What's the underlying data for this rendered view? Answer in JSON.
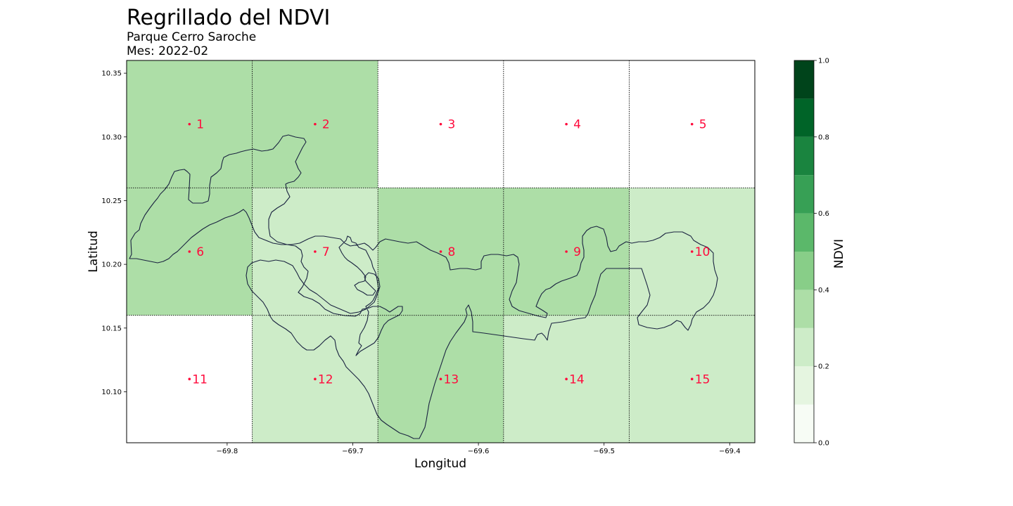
{
  "title": "Regrillado del NDVI",
  "subtitle_park": "Parque Cerro Saroche",
  "subtitle_month": "Mes: 2022-02",
  "colors": {
    "grid_line": "#000000",
    "point_label": "#ff0a3c",
    "outline": "#1a2340",
    "colormap": [
      "#f7fcf5",
      "#e5f5e0",
      "#cdecc8",
      "#addea7",
      "#88ce88",
      "#5bb86a",
      "#37a055",
      "#1a843f",
      "#006428",
      "#00441b"
    ]
  },
  "chart_data": {
    "type": "heatmap",
    "title": "Regrillado del NDVI",
    "subtitle": [
      "Parque Cerro Saroche",
      "Mes: 2022-02"
    ],
    "xlabel": "Longitud",
    "ylabel": "Latitud",
    "xlim": [
      -69.88,
      -69.38
    ],
    "ylim": [
      10.06,
      10.36
    ],
    "xticks": [
      -69.8,
      -69.7,
      -69.6,
      -69.5,
      -69.4
    ],
    "xtick_labels": [
      "−69.8",
      "−69.7",
      "−69.6",
      "−69.5",
      "−69.4"
    ],
    "yticks": [
      10.1,
      10.15,
      10.2,
      10.25,
      10.3,
      10.35
    ],
    "ytick_labels": [
      "10.10",
      "10.15",
      "10.20",
      "10.25",
      "10.30",
      "10.35"
    ],
    "x_edges": [
      -69.88,
      -69.78,
      -69.68,
      -69.58,
      -69.48,
      -69.38
    ],
    "y_edges": [
      10.36,
      10.26,
      10.16,
      10.06
    ],
    "cells": [
      {
        "id": "1",
        "lon": -69.83,
        "lat": 10.31,
        "ndvi": 0.35
      },
      {
        "id": "2",
        "lon": -69.73,
        "lat": 10.31,
        "ndvi": 0.35
      },
      {
        "id": "3",
        "lon": -69.63,
        "lat": 10.31,
        "ndvi": null
      },
      {
        "id": "4",
        "lon": -69.53,
        "lat": 10.31,
        "ndvi": null
      },
      {
        "id": "5",
        "lon": -69.43,
        "lat": 10.31,
        "ndvi": null
      },
      {
        "id": "6",
        "lon": -69.83,
        "lat": 10.21,
        "ndvi": 0.35
      },
      {
        "id": "7",
        "lon": -69.73,
        "lat": 10.21,
        "ndvi": 0.25
      },
      {
        "id": "8",
        "lon": -69.63,
        "lat": 10.21,
        "ndvi": 0.35
      },
      {
        "id": "9",
        "lon": -69.53,
        "lat": 10.21,
        "ndvi": 0.35
      },
      {
        "id": "10",
        "lon": -69.43,
        "lat": 10.21,
        "ndvi": 0.25
      },
      {
        "id": "11",
        "lon": -69.83,
        "lat": 10.11,
        "ndvi": null
      },
      {
        "id": "12",
        "lon": -69.73,
        "lat": 10.11,
        "ndvi": 0.25
      },
      {
        "id": "13",
        "lon": -69.63,
        "lat": 10.11,
        "ndvi": 0.35
      },
      {
        "id": "14",
        "lon": -69.53,
        "lat": 10.11,
        "ndvi": 0.25
      },
      {
        "id": "15",
        "lon": -69.43,
        "lat": 10.11,
        "ndvi": 0.25
      }
    ],
    "colorbar": {
      "label": "NDVI",
      "levels": [
        0.0,
        0.1,
        0.2,
        0.3,
        0.4,
        0.5,
        0.6,
        0.7,
        0.8,
        0.9,
        1.0
      ],
      "ticks": [
        0.0,
        0.2,
        0.4,
        0.6,
        0.8,
        1.0
      ],
      "tick_labels": [
        "0.0",
        "0.2",
        "0.4",
        "0.6",
        "0.8",
        "1.0"
      ]
    },
    "grid": true,
    "legend": "none"
  }
}
